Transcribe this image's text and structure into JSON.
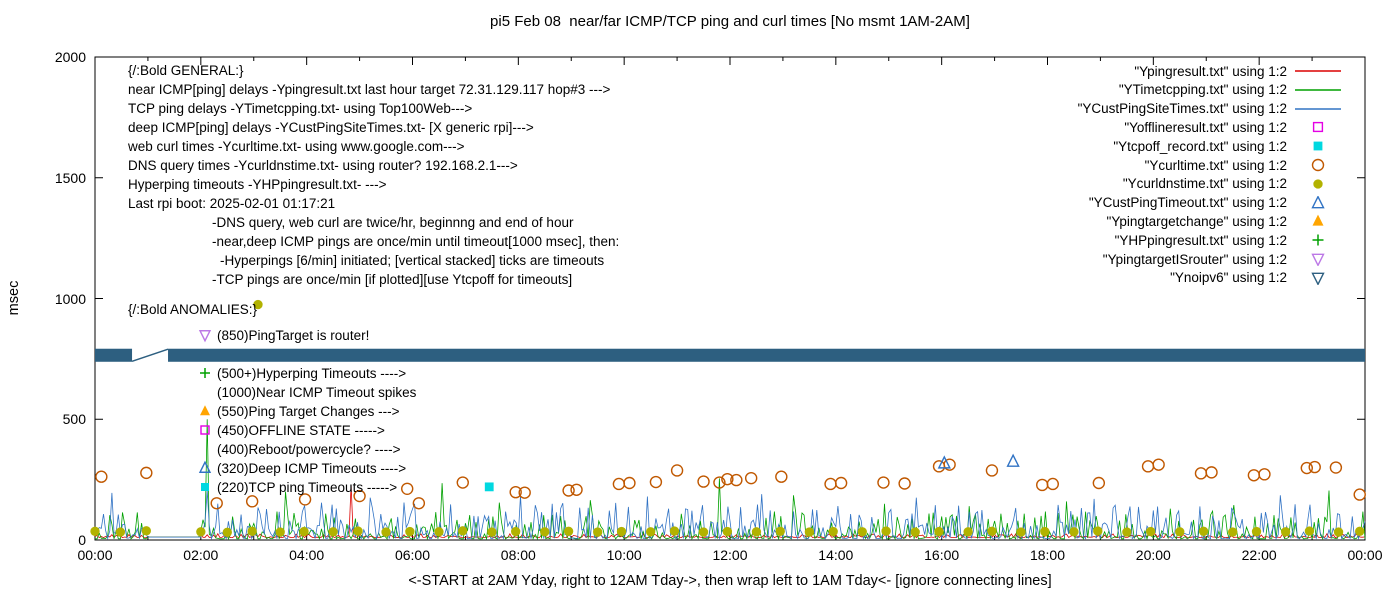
{
  "title": "pi5 Feb 08  near/far ICMP/TCP ping and curl times [No msmt 1AM-2AM]",
  "axes": {
    "ylabel": "msec",
    "xlabel": "<-START at 2AM Yday, right to 12AM Tday->, then wrap left to 1AM Tday<- [ignore connecting lines]",
    "y_ticks": [
      "0",
      "500",
      "1000",
      "1500",
      "2000"
    ],
    "y_tick_values": [
      0,
      500,
      1000,
      1500,
      2000
    ],
    "x_ticks": [
      "00:00",
      "02:00",
      "04:00",
      "06:00",
      "08:00",
      "10:00",
      "12:00",
      "14:00",
      "16:00",
      "18:00",
      "20:00",
      "22:00",
      "00:00"
    ],
    "ylim": [
      0,
      2000
    ],
    "xlim_hours": [
      0,
      24
    ]
  },
  "colors": {
    "red": "#dc0000",
    "green": "#00a000",
    "blue": "#3173c4",
    "magenta": "#e400e4",
    "cyan": "#00d8e0",
    "dark_orange": "#c05800",
    "olive": "#b2b200",
    "orange": "#ffa500",
    "violet": "#bc78e6",
    "navy": "#2d5f80",
    "black": "#000000"
  },
  "legend": {
    "items": [
      {
        "label": "\"Ypingresult.txt\" using 1:2",
        "marker": "line",
        "color": "red"
      },
      {
        "label": "\"YTimetcpping.txt\" using 1:2",
        "marker": "line",
        "color": "green"
      },
      {
        "label": "\"YCustPingSiteTimes.txt\" using 1:2",
        "marker": "line",
        "color": "blue"
      },
      {
        "label": "\"Yofflineresult.txt\" using 1:2",
        "marker": "square-open",
        "color": "magenta"
      },
      {
        "label": "\"Ytcpoff_record.txt\" using 1:2",
        "marker": "square-filled",
        "color": "cyan"
      },
      {
        "label": "\"Ycurltime.txt\" using 1:2",
        "marker": "circle-open",
        "color": "dark_orange"
      },
      {
        "label": "\"Ycurldnstime.txt\" using 1:2",
        "marker": "circle-filled",
        "color": "olive"
      },
      {
        "label": "\"YCustPingTimeout.txt\" using 1:2",
        "marker": "triangle-up-open",
        "color": "blue"
      },
      {
        "label": "\"Ypingtargetchange\" using 1:2",
        "marker": "triangle-up-filled",
        "color": "orange"
      },
      {
        "label": "\"YHPpingresult.txt\" using 1:2",
        "marker": "plus",
        "color": "green"
      },
      {
        "label": "\"YpingtargetISrouter\" using 1:2",
        "marker": "triangle-down-open",
        "color": "violet"
      },
      {
        "label": "\"Ynoipv6\" using 1:2",
        "marker": "triangle-down-open",
        "color": "navy"
      }
    ]
  },
  "annotations": {
    "general": {
      "items": [
        {
          "text": "{/:Bold GENERAL:}",
          "indent": 0
        },
        {
          "text": "near ICMP[ping] delays -Ypingresult.txt last hour target 72.31.129.117 hop#3 --->",
          "indent": 0
        },
        {
          "text": "TCP ping delays -YTimetcpping.txt- using Top100Web--->",
          "indent": 0
        },
        {
          "text": "deep ICMP[ping] delays -YCustPingSiteTimes.txt- [X generic rpi]--->",
          "indent": 0
        },
        {
          "text": "web curl times -Ycurltime.txt- using www.google.com--->",
          "indent": 0
        },
        {
          "text": "DNS query times -Ycurldnstime.txt- using router? 192.168.2.1--->",
          "indent": 0
        },
        {
          "text": "Hyperping timeouts -YHPpingresult.txt- --->",
          "indent": 0
        },
        {
          "text": "Last rpi boot: 2025-02-01 01:17:21",
          "indent": 0
        },
        {
          "text": "-DNS query, web curl are twice/hr, beginnng and end of hour",
          "indent": 84
        },
        {
          "text": "-near,deep ICMP pings are once/min until timeout[1000 msec], then:",
          "indent": 84
        },
        {
          "text": "-Hyperpings [6/min] initiated; [vertical stacked] ticks are timeouts",
          "indent": 92
        },
        {
          "text": "-TCP pings are once/min [if plotted][use Ytcpoff for timeouts]",
          "indent": 84
        }
      ]
    },
    "anomalies": {
      "header": "{/:Bold ANOMALIES:}",
      "items": [
        {
          "marker": "triangle-down-open",
          "color": "violet",
          "text": "(850)PingTarget is router!"
        },
        {
          "marker": null,
          "color": null,
          "text": ""
        },
        {
          "marker": "plus",
          "color": "green",
          "text": "(500+)Hyperping Timeouts ---->"
        },
        {
          "marker": null,
          "color": null,
          "text": "(1000)Near ICMP Timeout spikes"
        },
        {
          "marker": "triangle-up-filled",
          "color": "orange",
          "text": "(550)Ping Target Changes --->"
        },
        {
          "marker": "square-open",
          "color": "magenta",
          "text": "(450)OFFLINE STATE ----->"
        },
        {
          "marker": null,
          "color": null,
          "text": "(400)Reboot/powercycle? ---->"
        },
        {
          "marker": "triangle-up-open",
          "color": "blue",
          "text": "(320)Deep ICMP Timeouts ---->"
        },
        {
          "marker": "square-filled",
          "color": "cyan",
          "text": "(220)TCP ping Timeouts ----->"
        }
      ]
    }
  },
  "chart_data": {
    "type": "line",
    "x_unit": "hours_of_day",
    "xlim": [
      0,
      24
    ],
    "ylim": [
      0,
      2000
    ],
    "no_measurement_window": "01:00-02:00",
    "series": [
      {
        "name": "Ypingresult.txt",
        "kind": "line",
        "color": "red",
        "noise_base": 10,
        "noise_amp": 16,
        "noise_pow": 2.5,
        "seed": 5,
        "spikes": [
          [
            4.85,
            230
          ]
        ]
      },
      {
        "name": "YTimetcpping.txt",
        "kind": "line",
        "color": "green",
        "noise_base": 5,
        "noise_amp": 115,
        "noise_pow": 3.4,
        "seed": 23,
        "spikes": [
          [
            2.12,
            500
          ],
          [
            3.6,
            200
          ],
          [
            6.55,
            235
          ],
          [
            7.65,
            155
          ],
          [
            9.35,
            165
          ],
          [
            11.8,
            255
          ],
          [
            13.2,
            185
          ],
          [
            14.9,
            150
          ],
          [
            16.5,
            140
          ],
          [
            18.35,
            160
          ],
          [
            20.3,
            130
          ],
          [
            21.5,
            145
          ],
          [
            23.3,
            205
          ]
        ]
      },
      {
        "name": "YCustPingSiteTimes.txt",
        "kind": "line",
        "color": "blue",
        "noise_base": 6,
        "noise_amp": 150,
        "noise_pow": 2.4,
        "seed": 11,
        "spikes": [
          [
            0.3,
            195
          ],
          [
            2.1,
            205
          ],
          [
            5.2,
            175
          ],
          [
            8.05,
            185
          ],
          [
            10.45,
            180
          ],
          [
            12.6,
            190
          ],
          [
            15.5,
            175
          ],
          [
            18.9,
            170
          ],
          [
            22.4,
            185
          ]
        ]
      },
      {
        "name": "Ycurltime.txt",
        "kind": "scatter",
        "marker": "circle-open",
        "color": "dark_orange",
        "points": [
          [
            0.12,
            262
          ],
          [
            0.97,
            278
          ],
          [
            2.3,
            152
          ],
          [
            2.97,
            160
          ],
          [
            3.97,
            168
          ],
          [
            5.0,
            182
          ],
          [
            5.9,
            212
          ],
          [
            6.12,
            152
          ],
          [
            6.95,
            238
          ],
          [
            7.95,
            198
          ],
          [
            8.12,
            196
          ],
          [
            8.95,
            205
          ],
          [
            9.1,
            208
          ],
          [
            9.9,
            232
          ],
          [
            10.1,
            236
          ],
          [
            10.6,
            240
          ],
          [
            11.0,
            288
          ],
          [
            11.5,
            242
          ],
          [
            11.8,
            238
          ],
          [
            11.95,
            252
          ],
          [
            12.12,
            248
          ],
          [
            12.4,
            256
          ],
          [
            12.97,
            262
          ],
          [
            13.9,
            232
          ],
          [
            14.1,
            236
          ],
          [
            14.9,
            238
          ],
          [
            15.3,
            234
          ],
          [
            15.95,
            305
          ],
          [
            16.15,
            312
          ],
          [
            16.95,
            288
          ],
          [
            17.9,
            228
          ],
          [
            18.1,
            232
          ],
          [
            18.97,
            236
          ],
          [
            19.9,
            305
          ],
          [
            20.1,
            312
          ],
          [
            20.9,
            276
          ],
          [
            21.1,
            280
          ],
          [
            21.9,
            268
          ],
          [
            22.1,
            272
          ],
          [
            22.9,
            298
          ],
          [
            23.05,
            302
          ],
          [
            23.45,
            300
          ],
          [
            23.9,
            188
          ]
        ]
      },
      {
        "name": "Ycurldnstime.txt",
        "kind": "scatter",
        "marker": "circle-filled",
        "color": "olive",
        "points": [
          [
            0.0,
            36
          ],
          [
            0.48,
            33
          ],
          [
            0.97,
            38
          ],
          [
            2.0,
            34
          ],
          [
            2.5,
            32
          ],
          [
            2.97,
            36
          ],
          [
            3.08,
            975
          ],
          [
            3.5,
            33
          ],
          [
            3.95,
            35
          ],
          [
            4.5,
            34
          ],
          [
            4.97,
            37
          ],
          [
            5.5,
            33
          ],
          [
            5.95,
            35
          ],
          [
            6.5,
            34
          ],
          [
            6.95,
            38
          ],
          [
            7.5,
            33
          ],
          [
            7.95,
            35
          ],
          [
            8.5,
            34
          ],
          [
            8.95,
            36
          ],
          [
            9.5,
            33
          ],
          [
            9.95,
            35
          ],
          [
            10.5,
            34
          ],
          [
            10.95,
            37
          ],
          [
            11.5,
            33
          ],
          [
            11.95,
            35
          ],
          [
            12.5,
            34
          ],
          [
            12.95,
            36
          ],
          [
            13.5,
            33
          ],
          [
            13.95,
            35
          ],
          [
            14.5,
            34
          ],
          [
            14.95,
            37
          ],
          [
            15.5,
            33
          ],
          [
            15.95,
            35
          ],
          [
            16.5,
            34
          ],
          [
            16.95,
            36
          ],
          [
            17.5,
            33
          ],
          [
            17.95,
            35
          ],
          [
            18.5,
            34
          ],
          [
            18.95,
            37
          ],
          [
            19.5,
            33
          ],
          [
            19.95,
            35
          ],
          [
            20.5,
            34
          ],
          [
            20.95,
            36
          ],
          [
            21.5,
            33
          ],
          [
            21.95,
            35
          ],
          [
            22.5,
            34
          ],
          [
            22.95,
            37
          ],
          [
            23.5,
            33
          ],
          [
            23.9,
            36
          ]
        ]
      },
      {
        "name": "Ytcpoff_record.txt",
        "kind": "scatter",
        "marker": "square-filled",
        "color": "cyan",
        "points": [
          [
            7.45,
            220
          ]
        ]
      },
      {
        "name": "YCustPingTimeout.txt",
        "kind": "scatter",
        "marker": "triangle-up-open",
        "color": "blue",
        "points": [
          [
            16.05,
            318
          ],
          [
            17.35,
            325
          ]
        ]
      },
      {
        "name": "Yofflineresult.txt",
        "kind": "scatter",
        "marker": "square-open",
        "color": "magenta",
        "points": []
      },
      {
        "name": "YHPpingresult.txt",
        "kind": "scatter",
        "marker": "plus",
        "color": "green",
        "points": []
      },
      {
        "name": "Ynoipv6",
        "kind": "band",
        "color": "navy",
        "y_msec": 765,
        "half_height_msec": 27,
        "x_segments": [
          [
            0,
            0.7
          ],
          [
            1.38,
            24
          ]
        ],
        "gap_connector": [
          [
            0.7,
            740
          ],
          [
            1.38,
            790
          ]
        ]
      }
    ]
  }
}
